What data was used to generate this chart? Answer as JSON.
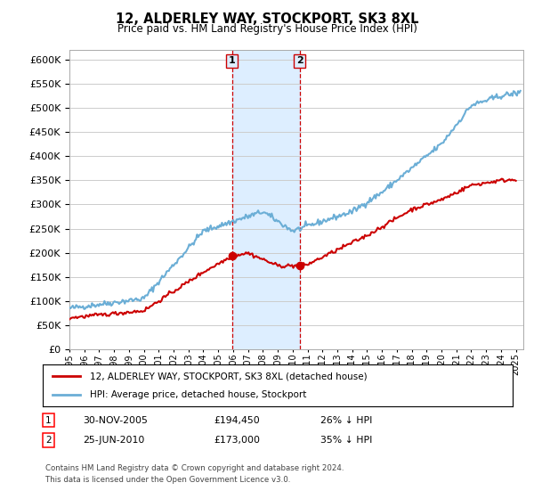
{
  "title": "12, ALDERLEY WAY, STOCKPORT, SK3 8XL",
  "subtitle": "Price paid vs. HM Land Registry's House Price Index (HPI)",
  "legend_line1": "12, ALDERLEY WAY, STOCKPORT, SK3 8XL (detached house)",
  "legend_line2": "HPI: Average price, detached house, Stockport",
  "transaction1_date": "30-NOV-2005",
  "transaction1_price": "£194,450",
  "transaction1_hpi": "26% ↓ HPI",
  "transaction2_date": "25-JUN-2010",
  "transaction2_price": "£173,000",
  "transaction2_hpi": "35% ↓ HPI",
  "footnote1": "Contains HM Land Registry data © Crown copyright and database right 2024.",
  "footnote2": "This data is licensed under the Open Government Licence v3.0.",
  "xmin": 1995.0,
  "xmax": 2025.5,
  "ymin": 0,
  "ymax": 620000,
  "yticks": [
    0,
    50000,
    100000,
    150000,
    200000,
    250000,
    300000,
    350000,
    400000,
    450000,
    500000,
    550000,
    600000
  ],
  "transaction1_x": 2005.92,
  "transaction1_y": 194450,
  "transaction2_x": 2010.48,
  "transaction2_y": 173000,
  "vline1_x": 2005.92,
  "vline2_x": 2010.48,
  "hpi_color": "#6baed6",
  "price_color": "#cc0000",
  "vline_color": "#cc0000",
  "highlight_color": "#ddeeff",
  "bg_color": "#ffffff",
  "grid_color": "#cccccc"
}
